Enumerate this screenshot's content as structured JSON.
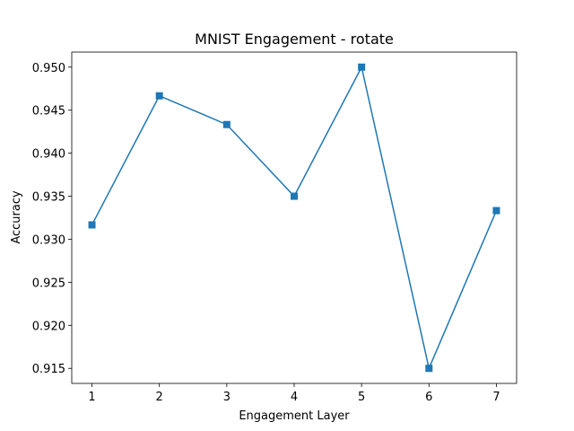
{
  "chart_data": {
    "type": "line",
    "title": "MNIST Engagement - rotate",
    "xlabel": "Engagement Layer",
    "ylabel": "Accuracy",
    "x": [
      1,
      2,
      3,
      4,
      5,
      6,
      7
    ],
    "x_ticks": [
      "1",
      "2",
      "3",
      "4",
      "5",
      "6",
      "7"
    ],
    "y_ticks": [
      "0.915",
      "0.920",
      "0.925",
      "0.930",
      "0.935",
      "0.940",
      "0.945",
      "0.950"
    ],
    "xlim": [
      0.7,
      7.3
    ],
    "ylim": [
      0.91325,
      0.95175
    ],
    "grid": false,
    "marker": "square",
    "series": [
      {
        "values": [
          0.93167,
          0.94667,
          0.94333,
          0.935,
          0.95,
          0.915,
          0.93333
        ],
        "color": "#1f77b4"
      }
    ]
  }
}
